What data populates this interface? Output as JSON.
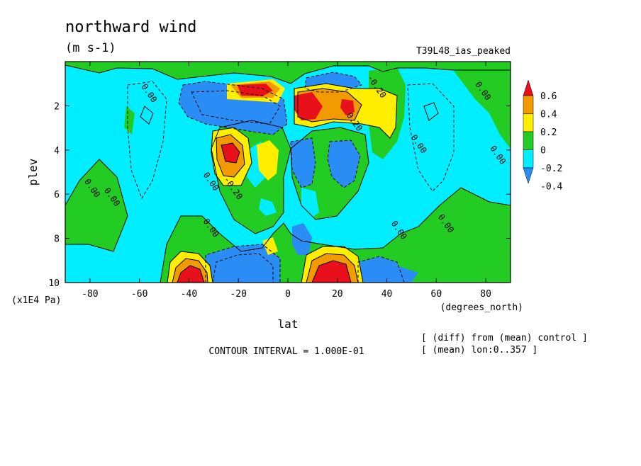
{
  "header": {
    "title": "northward wind",
    "units": "(m s-1)",
    "experiment": "T39L48_ias_peaked"
  },
  "footer": {
    "contour_interval": "CONTOUR INTERVAL = 1.000E-01",
    "diff_note": "[ (diff) from (mean) control ]",
    "mean_note": "[ (mean) lon:0..357 ]"
  },
  "colors": {
    "red": "#e8101a",
    "orange": "#f29b00",
    "yellow": "#ffee00",
    "green": "#22cc22",
    "cyan": "#00eeff",
    "blue": "#2a8cf5"
  },
  "chart_data": {
    "type": "heatmap",
    "title": "northward wind",
    "units": "(m s-1)",
    "xlabel": "lat",
    "x_units": "(degrees_north)",
    "ylabel": "plev",
    "y_units": "(x1E4 Pa)",
    "xlim": [
      -90,
      90
    ],
    "ylim": [
      10,
      0
    ],
    "y_inverted": true,
    "x_ticks": [
      -80,
      -60,
      -40,
      -20,
      0,
      20,
      40,
      60,
      80
    ],
    "y_ticks": [
      2,
      4,
      6,
      8,
      10
    ],
    "contour_interval": 0.1,
    "colorbar": {
      "boundaries": [
        0.6,
        0.4,
        0.2,
        0,
        -0.2,
        -0.4
      ],
      "labels": [
        "0.6",
        "0.4",
        "0.2",
        "0",
        "-0.2",
        "-0.4"
      ],
      "colors": [
        "#e8101a",
        "#f29b00",
        "#ffee00",
        "#22cc22",
        "#00eeff",
        "#2a8cf5"
      ]
    },
    "contour_labels": [
      {
        "text": "0.00",
        "lat": -57,
        "plev": 1.5
      },
      {
        "text": "-0.20",
        "lat": 35,
        "plev": 1.2
      },
      {
        "text": "0.20",
        "lat": 26,
        "plev": 2.8
      },
      {
        "text": "0.00",
        "lat": 78,
        "plev": 1.4
      },
      {
        "text": "0.00",
        "lat": 84,
        "plev": 4.3
      },
      {
        "text": "0.00",
        "lat": 52,
        "plev": 3.8
      },
      {
        "text": "0.00",
        "lat": -32,
        "plev": 5.5
      },
      {
        "text": "-0.20",
        "lat": -23,
        "plev": 5.8
      },
      {
        "text": "0.00",
        "lat": -80,
        "plev": 5.8
      },
      {
        "text": "0.00",
        "lat": -72,
        "plev": 6.2
      },
      {
        "text": "0.00",
        "lat": -32,
        "plev": 7.6
      },
      {
        "text": "0.00",
        "lat": 44,
        "plev": 7.7
      },
      {
        "text": "0.00",
        "lat": 63,
        "plev": 7.4
      }
    ]
  }
}
